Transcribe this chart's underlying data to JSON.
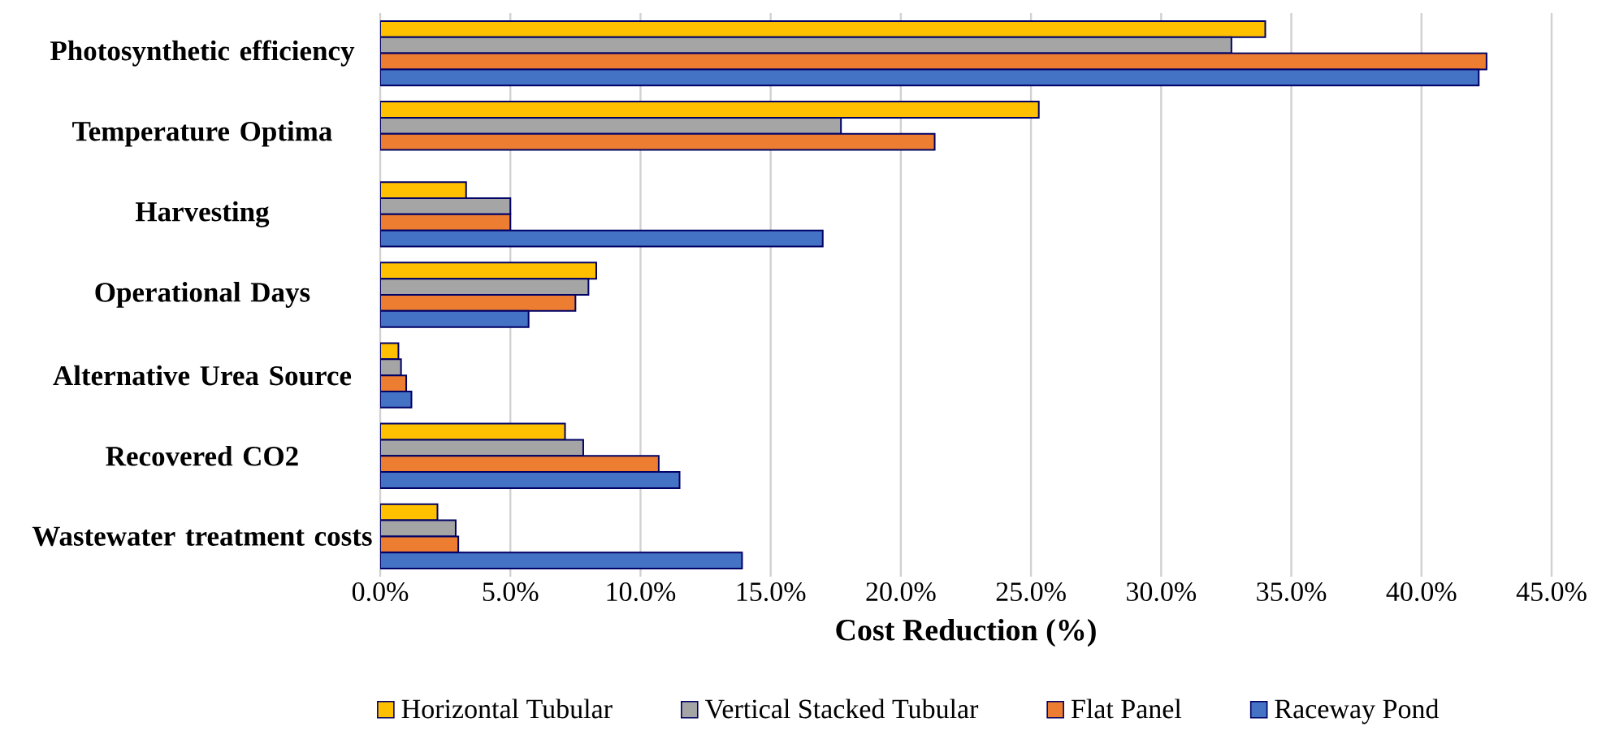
{
  "chart_data": {
    "type": "bar",
    "orientation": "horizontal",
    "xlabel": "Cost Reduction (%)",
    "categories": [
      "Photosynthetic efficiency",
      "Temperature Optima",
      "Harvesting",
      "Operational Days",
      "Alternative Urea Source",
      "Recovered CO2",
      "Wastewater treatment costs"
    ],
    "series": [
      {
        "name": "Horizontal Tubular",
        "color": "#ffc000",
        "values": [
          34.0,
          25.3,
          3.3,
          8.3,
          0.7,
          7.1,
          2.2
        ]
      },
      {
        "name": "Vertical Stacked Tubular",
        "color": "#a5a5a5",
        "values": [
          32.7,
          17.7,
          5.0,
          8.0,
          0.8,
          7.8,
          2.9
        ]
      },
      {
        "name": "Flat Panel",
        "color": "#ed7d31",
        "values": [
          42.5,
          21.3,
          5.0,
          7.5,
          1.0,
          10.7,
          3.0
        ]
      },
      {
        "name": "Raceway Pond",
        "color": "#4472c4",
        "values": [
          42.2,
          null,
          17.0,
          5.7,
          1.2,
          11.5,
          13.9
        ]
      }
    ],
    "xlim": [
      0,
      45
    ],
    "xticks": [
      {
        "value": 0,
        "label": "0.0%"
      },
      {
        "value": 5,
        "label": "5.0%"
      },
      {
        "value": 10,
        "label": "10.0%"
      },
      {
        "value": 15,
        "label": "15.0%"
      },
      {
        "value": 20,
        "label": "20.0%"
      },
      {
        "value": 25,
        "label": "25.0%"
      },
      {
        "value": 30,
        "label": "30.0%"
      },
      {
        "value": 35,
        "label": "35.0%"
      },
      {
        "value": 40,
        "label": "40.0%"
      },
      {
        "value": 45,
        "label": "45.0%"
      }
    ],
    "grid": "x",
    "legend": "bottom"
  }
}
